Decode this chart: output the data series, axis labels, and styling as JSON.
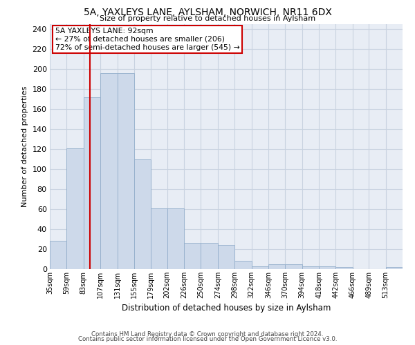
{
  "title": "5A, YAXLEYS LANE, AYLSHAM, NORWICH, NR11 6DX",
  "subtitle": "Size of property relative to detached houses in Aylsham",
  "xlabel": "Distribution of detached houses by size in Aylsham",
  "ylabel": "Number of detached properties",
  "bar_color": "#cdd9ea",
  "bar_edgecolor": "#93aecb",
  "grid_color": "#c8d2e0",
  "background_color": "#e8edf5",
  "redline_x": 92,
  "annotation_title": "5A YAXLEYS LANE: 92sqm",
  "annotation_line1": "← 27% of detached houses are smaller (206)",
  "annotation_line2": "72% of semi-detached houses are larger (545) →",
  "annotation_box_color": "#ffffff",
  "annotation_border_color": "#cc0000",
  "redline_color": "#cc0000",
  "bins": [
    35,
    59,
    83,
    107,
    131,
    155,
    179,
    202,
    226,
    250,
    274,
    298,
    322,
    346,
    370,
    394,
    418,
    442,
    466,
    489,
    513,
    537
  ],
  "bin_labels": [
    "35sqm",
    "59sqm",
    "83sqm",
    "107sqm",
    "131sqm",
    "155sqm",
    "179sqm",
    "202sqm",
    "226sqm",
    "250sqm",
    "274sqm",
    "298sqm",
    "322sqm",
    "346sqm",
    "370sqm",
    "394sqm",
    "418sqm",
    "442sqm",
    "466sqm",
    "489sqm",
    "513sqm"
  ],
  "bar_heights": [
    28,
    121,
    172,
    196,
    196,
    110,
    61,
    61,
    26,
    26,
    24,
    8,
    3,
    5,
    5,
    3,
    3,
    2,
    0,
    0,
    2
  ],
  "ylim": [
    0,
    245
  ],
  "yticks": [
    0,
    20,
    40,
    60,
    80,
    100,
    120,
    140,
    160,
    180,
    200,
    220,
    240
  ],
  "footnote1": "Contains HM Land Registry data © Crown copyright and database right 2024.",
  "footnote2": "Contains public sector information licensed under the Open Government Licence v3.0."
}
